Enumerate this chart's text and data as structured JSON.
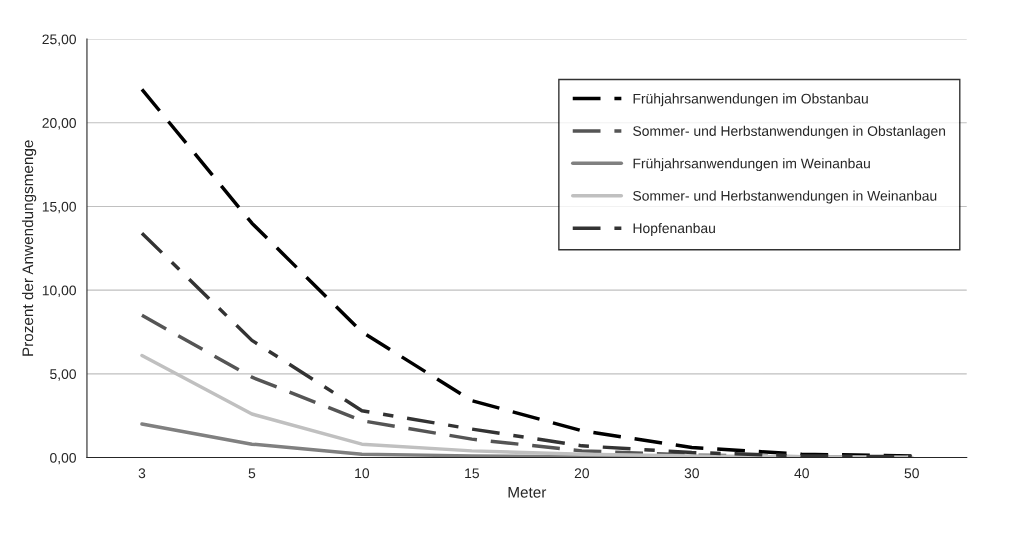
{
  "chart_data": {
    "type": "line",
    "xlabel": "Meter",
    "ylabel": "Prozent der Anwendungsmenge",
    "categories": [
      "3",
      "5",
      "10",
      "15",
      "20",
      "30",
      "40",
      "50"
    ],
    "ylim": [
      0,
      25
    ],
    "yticks": [
      {
        "value": 0,
        "label": "0,00"
      },
      {
        "value": 5,
        "label": "5,00"
      },
      {
        "value": 10,
        "label": "10,00"
      },
      {
        "value": 15,
        "label": "15,00"
      },
      {
        "value": 20,
        "label": "20,00"
      },
      {
        "value": 25,
        "label": "25,00"
      }
    ],
    "grid": "y",
    "legend": "top right",
    "marker": "none",
    "series": [
      {
        "name": "Frühjahrsanwendungen im Obstanbau",
        "color": "#000000",
        "line_style": "dashed",
        "values": [
          22.0,
          14.0,
          7.5,
          3.4,
          1.6,
          0.6,
          0.2,
          0.1
        ]
      },
      {
        "name": "Sommer- und Herbstanwendungen in Obstanlagen",
        "color": "#555555",
        "line_style": "dashed",
        "values": [
          8.5,
          4.8,
          2.2,
          1.1,
          0.4,
          0.15,
          0.05,
          0.03
        ]
      },
      {
        "name": "Frühjahrsanwendungen im Weinanbau",
        "color": "#808080",
        "line_style": "solid",
        "values": [
          2.0,
          0.8,
          0.2,
          0.1,
          0.05,
          0.02,
          0.01,
          0.01
        ]
      },
      {
        "name": "Sommer- und Herbstanwendungen in Weinanbau",
        "color": "#c0c0c0",
        "line_style": "solid",
        "values": [
          6.1,
          2.6,
          0.8,
          0.4,
          0.2,
          0.1,
          0.05,
          0.02
        ]
      },
      {
        "name": "Hopfenanbau",
        "color": "#333333",
        "line_style": "dashdot",
        "values": [
          13.4,
          7.0,
          2.8,
          1.7,
          0.7,
          0.3,
          0.1,
          0.05
        ]
      }
    ]
  }
}
